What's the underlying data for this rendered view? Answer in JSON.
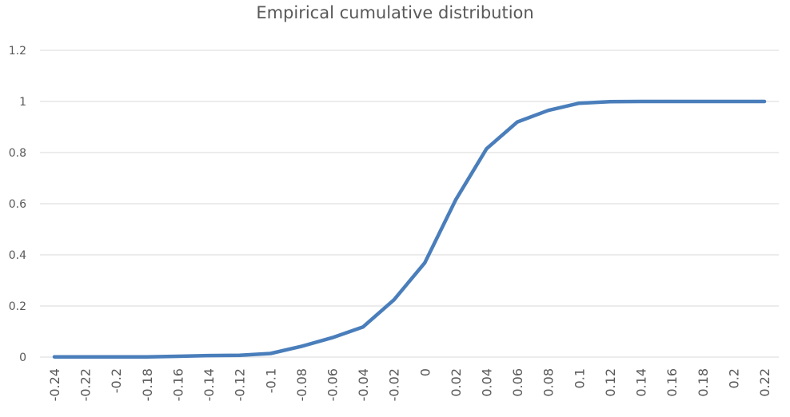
{
  "chart_data": {
    "type": "line",
    "title": "Empirical cumulative distribution",
    "xlabel": "",
    "ylabel": "",
    "x": [
      "-0.24",
      "-0.22",
      "-0.2",
      "-0.18",
      "-0.16",
      "-0.14",
      "-0.12",
      "-0.1",
      "-0.08",
      "-0.06",
      "-0.04",
      "-0.02",
      "0",
      "0.02",
      "0.04",
      "0.06",
      "0.08",
      "0.1",
      "0.12",
      "0.14",
      "0.16",
      "0.18",
      "0.2",
      "0.22"
    ],
    "series": [
      {
        "values": [
          0.001,
          0.001,
          0.001,
          0.001,
          0.003,
          0.006,
          0.007,
          0.014,
          0.042,
          0.076,
          0.118,
          0.224,
          0.369,
          0.615,
          0.815,
          0.92,
          0.965,
          0.993,
          0.999,
          1.0,
          1.0,
          1.0,
          1.0,
          1.0
        ]
      }
    ],
    "yticks": [
      "0",
      "0.2",
      "0.4",
      "0.6",
      "0.8",
      "1",
      "1.2"
    ],
    "ylim": [
      0,
      1.2
    ],
    "grid": true,
    "legend": "none",
    "colors": {
      "line": "#4a7ebb",
      "grid": "#d9d9d9",
      "text": "#595959"
    }
  }
}
